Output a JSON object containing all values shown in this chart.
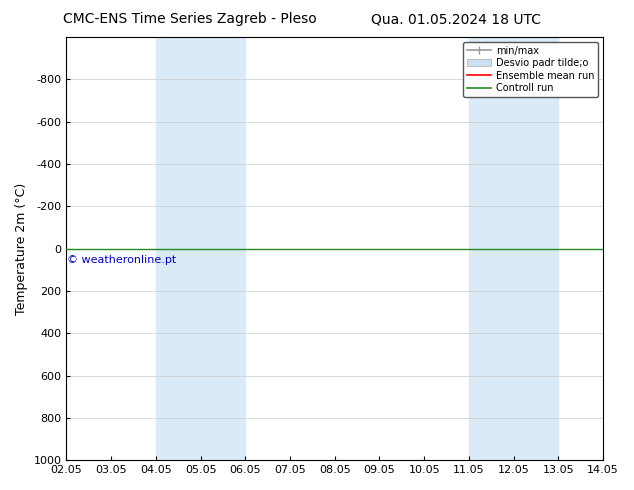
{
  "title_left": "CMC-ENS Time Series Zagreb - Pleso",
  "title_right": "Qua. 01.05.2024 18 UTC",
  "ylabel": "Temperature 2m (°C)",
  "xlabel_ticks": [
    "02.05",
    "03.05",
    "04.05",
    "05.05",
    "06.05",
    "07.05",
    "08.05",
    "09.05",
    "10.05",
    "11.05",
    "12.05",
    "13.05",
    "14.05"
  ],
  "xlim": [
    0,
    12
  ],
  "ylim": [
    -1000,
    1000
  ],
  "ytick_vals": [
    -800,
    -600,
    -400,
    -200,
    0,
    200,
    400,
    600,
    800,
    1000
  ],
  "ytick_labels": [
    "-800",
    "-600",
    "-400",
    "-200",
    "0",
    "200",
    "400",
    "600",
    "800",
    "1000"
  ],
  "shaded_bands": [
    [
      2,
      3
    ],
    [
      3,
      4
    ],
    [
      9,
      10
    ],
    [
      10,
      11
    ]
  ],
  "shaded_color": "#daeaf7",
  "shaded_color2": "#cde0f0",
  "control_run_y": 0,
  "control_run_color": "#228B22",
  "ensemble_mean_color": "#ff0000",
  "minmax_color": "#999999",
  "std_dev_color": "#cde0f0",
  "watermark": "© weatheronline.pt",
  "watermark_color": "#0000cc",
  "background_color": "#ffffff",
  "legend_labels": [
    "min/max",
    "Desvio padr tilde;o",
    "Ensemble mean run",
    "Controll run"
  ],
  "title_fontsize": 10,
  "tick_fontsize": 8,
  "ylabel_fontsize": 9
}
